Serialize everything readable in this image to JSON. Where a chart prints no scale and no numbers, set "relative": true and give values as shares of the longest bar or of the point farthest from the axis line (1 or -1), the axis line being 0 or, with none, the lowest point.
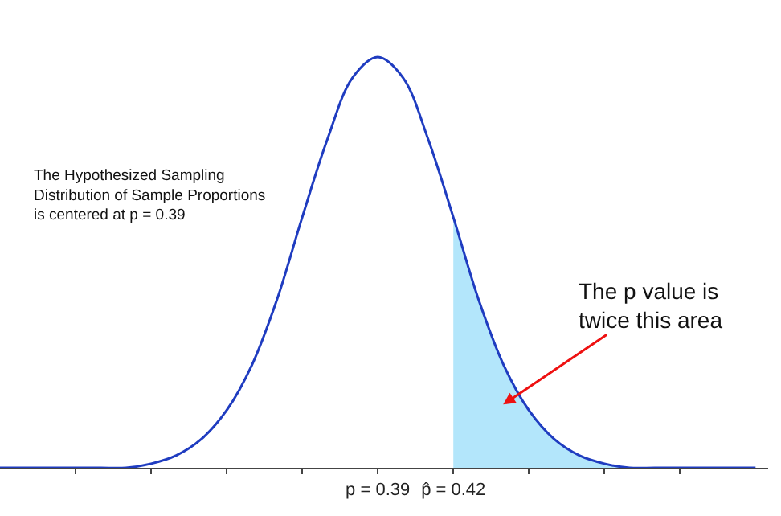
{
  "chart_data": {
    "type": "line",
    "relative": true,
    "marker": "none",
    "line_style": "solid",
    "x": [
      0.24,
      0.25,
      0.26,
      0.27,
      0.28,
      0.29,
      0.3,
      0.31,
      0.32,
      0.33,
      0.34,
      0.35,
      0.36,
      0.37,
      0.38,
      0.39,
      0.4,
      0.41,
      0.42,
      0.43,
      0.44,
      0.45,
      0.46,
      0.47,
      0.48,
      0.49,
      0.5,
      0.51,
      0.52,
      0.53,
      0.54
    ],
    "xlim": [
      0.24,
      0.545
    ],
    "xticks": [
      {
        "value": 0.27,
        "label": null
      },
      {
        "value": 0.3,
        "label": null
      },
      {
        "value": 0.33,
        "label": null
      },
      {
        "value": 0.36,
        "label": null
      },
      {
        "value": 0.39,
        "label": "p = 0.39"
      },
      {
        "value": 0.42,
        "label": "p̂ = 0.42"
      },
      {
        "value": 0.45,
        "label": null
      },
      {
        "value": 0.48,
        "label": null
      },
      {
        "value": 0.51,
        "label": null
      }
    ],
    "series": [
      {
        "type": "area",
        "color": "#b3e6fb",
        "x": [
          0.42,
          0.43,
          0.44,
          0.45,
          0.46,
          0.47,
          0.48,
          0.49,
          0.5,
          0.51,
          0.52,
          0.53,
          0.54
        ],
        "values": [
          0.61,
          0.41,
          0.25,
          0.14,
          0.07,
          0.03,
          0.01,
          0.0,
          0.0,
          0.0,
          0.0,
          0.0,
          0.0
        ]
      },
      {
        "color": "#1f3cc0",
        "values": [
          0.0,
          0.0,
          0.0,
          0.0,
          0.0,
          0.0,
          0.01,
          0.03,
          0.07,
          0.14,
          0.25,
          0.41,
          0.61,
          0.8,
          0.95,
          1.0,
          0.95,
          0.8,
          0.61,
          0.41,
          0.25,
          0.14,
          0.07,
          0.03,
          0.01,
          0.0,
          0.0,
          0.0,
          0.0,
          0.0,
          0.0
        ]
      }
    ],
    "annotations": [
      "The Hypothesized Sampling\nDistribution of Sample Proportions\nis centered at p = 0.39",
      "The p value is\ntwice this area"
    ]
  }
}
